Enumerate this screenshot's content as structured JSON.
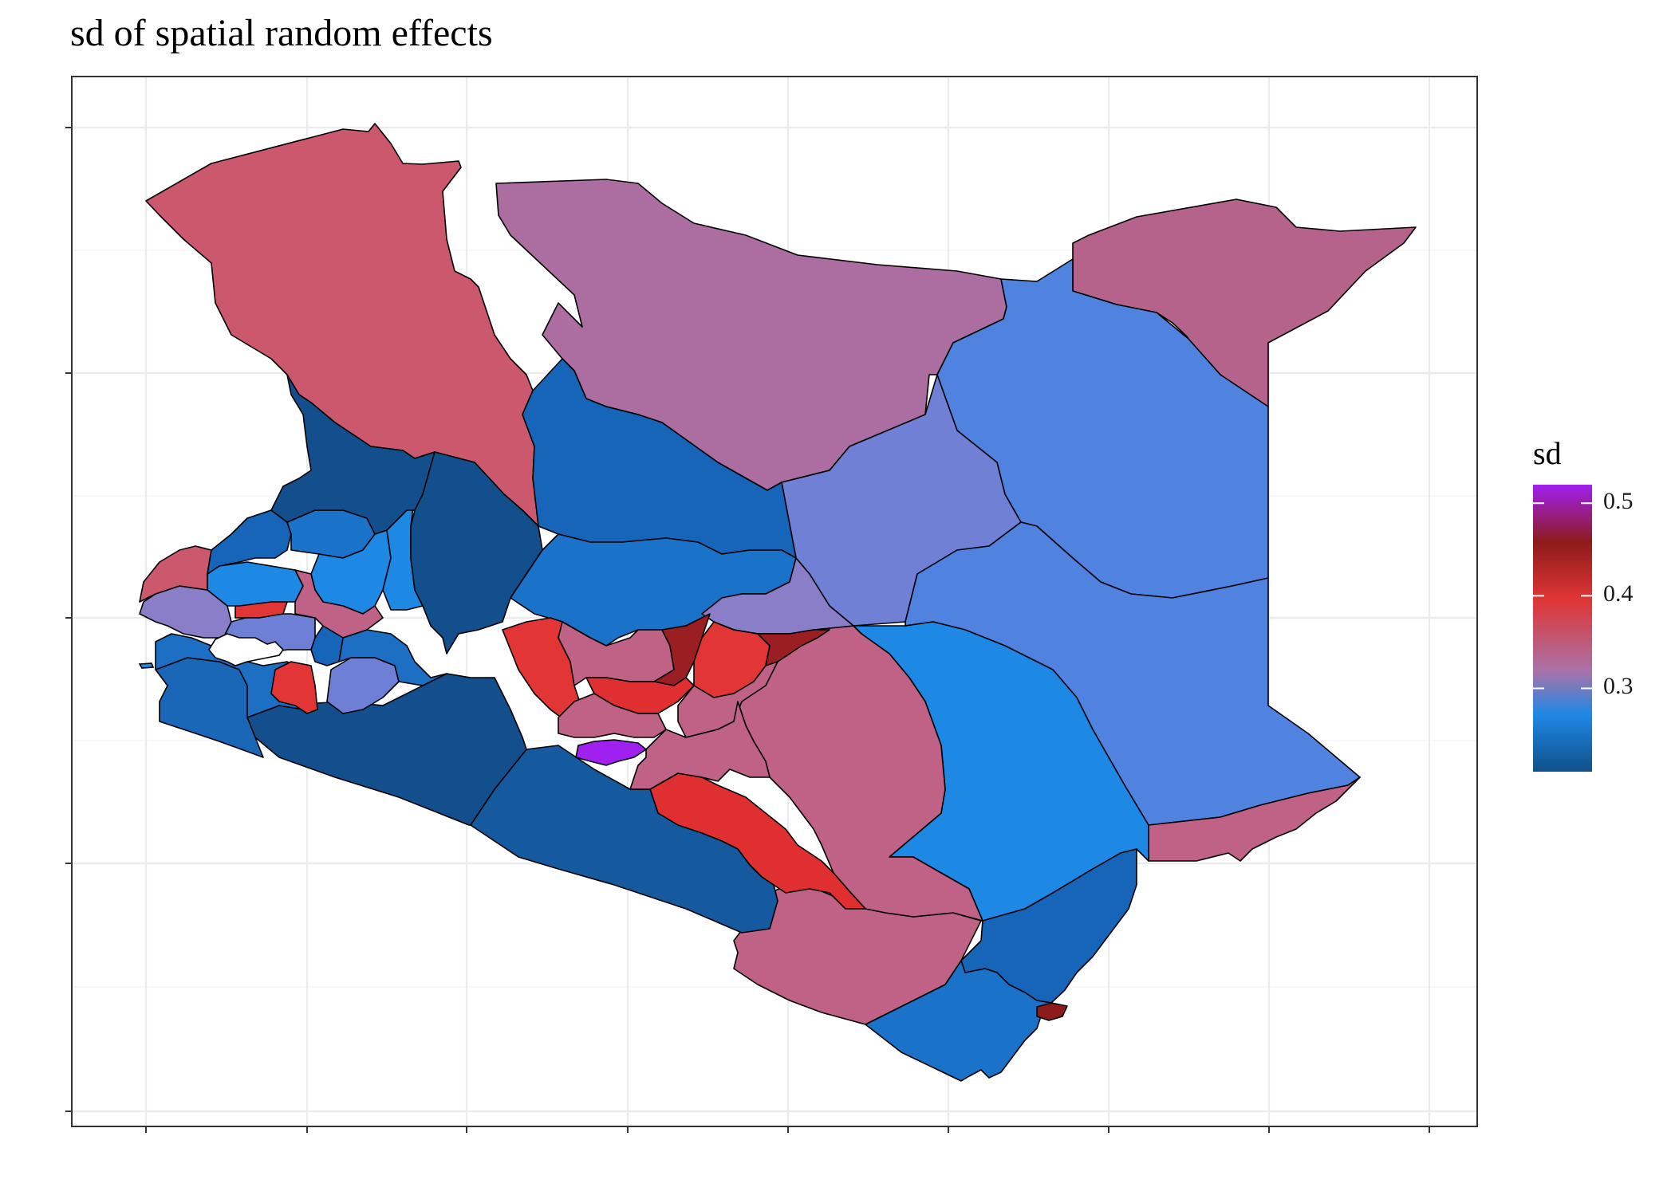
{
  "title": "sd of spatial random effects",
  "legend": {
    "title": "sd",
    "breaks": [
      "0.5",
      "0.4",
      "0.3"
    ],
    "break_values": [
      0.5,
      0.4,
      0.3
    ],
    "range": [
      0.21,
      0.52
    ],
    "gradient": [
      "#10508a",
      "#1e88e5",
      "#a973a8",
      "#e03535",
      "#8e1b1b",
      "#a020f0"
    ]
  },
  "colors": {
    "navy": "#124f8c",
    "darkblue": "#1565b5",
    "blue": "#1e88e5",
    "periblue": "#5082e0",
    "lavender": "#8a7ec8",
    "periwinkle": "#6e7fd6",
    "mauve": "#ac6ea0",
    "rose": "#c06285",
    "pink": "#cc586e",
    "red": "#e02f30",
    "brightred": "#e23636",
    "darkred": "#9b1f22",
    "purple": "#a020f0"
  }
}
